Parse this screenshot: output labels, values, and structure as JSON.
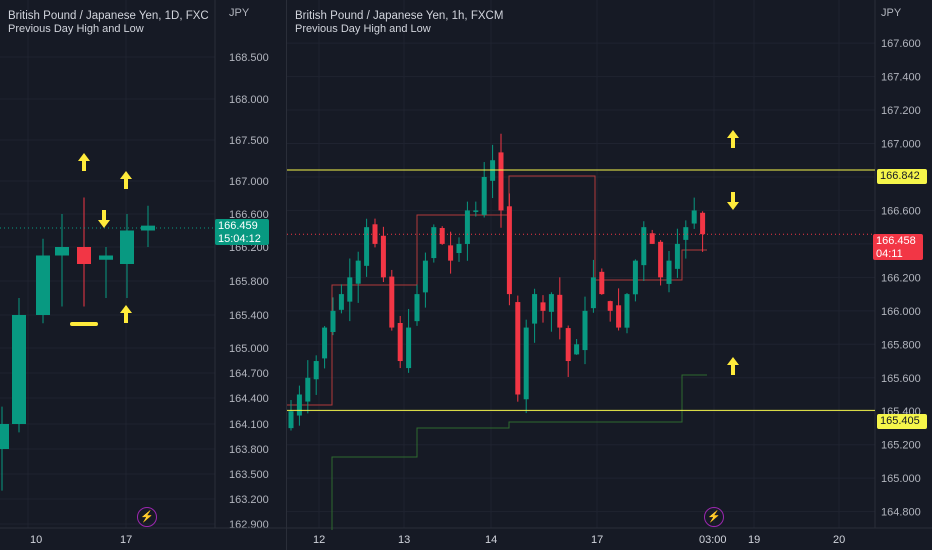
{
  "left_chart": {
    "title": "British Pound / Japanese Yen, 1D, FXC",
    "subtitle": "Previous Day High and Low",
    "unit": "JPY",
    "price_ticks": [
      "168.500",
      "168.000",
      "167.500",
      "167.000",
      "166.600",
      "166.200",
      "165.800",
      "165.400",
      "165.000",
      "164.700",
      "164.400",
      "164.100",
      "163.800",
      "163.500",
      "163.200",
      "162.900"
    ],
    "date_ticks": [
      "10",
      "17"
    ],
    "last_price": "166.459",
    "countdown": "15:04:12"
  },
  "right_chart": {
    "title": "British Pound / Japanese Yen, 1h, FXCM",
    "subtitle": "Previous Day High and Low",
    "unit": "JPY",
    "price_ticks": [
      "167.600",
      "167.400",
      "167.200",
      "167.000",
      "166.800",
      "166.600",
      "166.400",
      "166.200",
      "166.000",
      "165.800",
      "165.600",
      "165.400",
      "165.200",
      "165.000",
      "164.800"
    ],
    "date_ticks": [
      "12",
      "13",
      "14",
      "17",
      "03:00",
      "19",
      "20"
    ],
    "high_label": "166.842",
    "low_label": "165.405",
    "last_price": "166.458",
    "countdown": "04:11"
  },
  "colors": {
    "background": "#161a25",
    "up": "#089981",
    "down": "#f23645",
    "level": "#f5f54a",
    "annotation": "#ffeb3b",
    "pdh": "#b23a3a",
    "pdl": "#2e6b2e"
  },
  "chart_data": [
    {
      "type": "candlestick",
      "title": "British Pound / Japanese Yen, 1D, FXC",
      "subtitle": "Previous Day High and Low",
      "ylabel": "JPY",
      "ylim": [
        162.9,
        168.9
      ],
      "x_ticks": [
        "10",
        "17"
      ],
      "candles": [
        {
          "o": 163.8,
          "h": 164.3,
          "l": 163.3,
          "c": 164.1
        },
        {
          "o": 164.1,
          "h": 165.6,
          "l": 164.0,
          "c": 165.4
        },
        {
          "o": 165.4,
          "h": 166.3,
          "l": 165.3,
          "c": 166.1
        },
        {
          "o": 166.1,
          "h": 166.6,
          "l": 165.5,
          "c": 166.2
        },
        {
          "o": 166.2,
          "h": 166.8,
          "l": 165.5,
          "c": 166.0
        },
        {
          "o": 166.05,
          "h": 166.2,
          "l": 165.6,
          "c": 166.1
        },
        {
          "o": 166.0,
          "h": 166.6,
          "l": 165.6,
          "c": 166.4
        },
        {
          "o": 166.4,
          "h": 166.7,
          "l": 166.2,
          "c": 166.459
        }
      ],
      "last_price": 166.459,
      "annotations": [
        "up-arrow",
        "up-arrow",
        "down-arrow",
        "up-arrow",
        "dash"
      ]
    },
    {
      "type": "candlestick",
      "title": "British Pound / Japanese Yen, 1h, FXCM",
      "subtitle": "Previous Day High and Low",
      "ylabel": "JPY",
      "ylim": [
        164.75,
        167.75
      ],
      "x_ticks": [
        "12",
        "13",
        "14",
        "17",
        "03:00",
        "19",
        "20"
      ],
      "series": [
        {
          "name": "close",
          "values": [
            165.4,
            165.5,
            165.6,
            165.7,
            165.9,
            166.0,
            166.1,
            166.2,
            166.3,
            166.5,
            166.4,
            166.2,
            165.9,
            165.7,
            165.9,
            166.1,
            166.3,
            166.5,
            166.4,
            166.3,
            166.4,
            166.6,
            166.6,
            166.8,
            166.9,
            166.6,
            166.1,
            165.5,
            165.9,
            166.1,
            166.0,
            166.1,
            165.9,
            165.7,
            165.8,
            166.0,
            166.2,
            166.1,
            166.0,
            165.9,
            166.1,
            166.3,
            166.5,
            166.4,
            166.2,
            166.3,
            166.4,
            166.5,
            166.6,
            166.458
          ]
        }
      ],
      "levels": [
        {
          "label": "previous day high",
          "value": 166.842
        },
        {
          "label": "previous day low",
          "value": 165.405
        }
      ],
      "last_price": 166.458,
      "annotations": [
        "up-arrow",
        "down-arrow",
        "up-arrow"
      ]
    }
  ]
}
